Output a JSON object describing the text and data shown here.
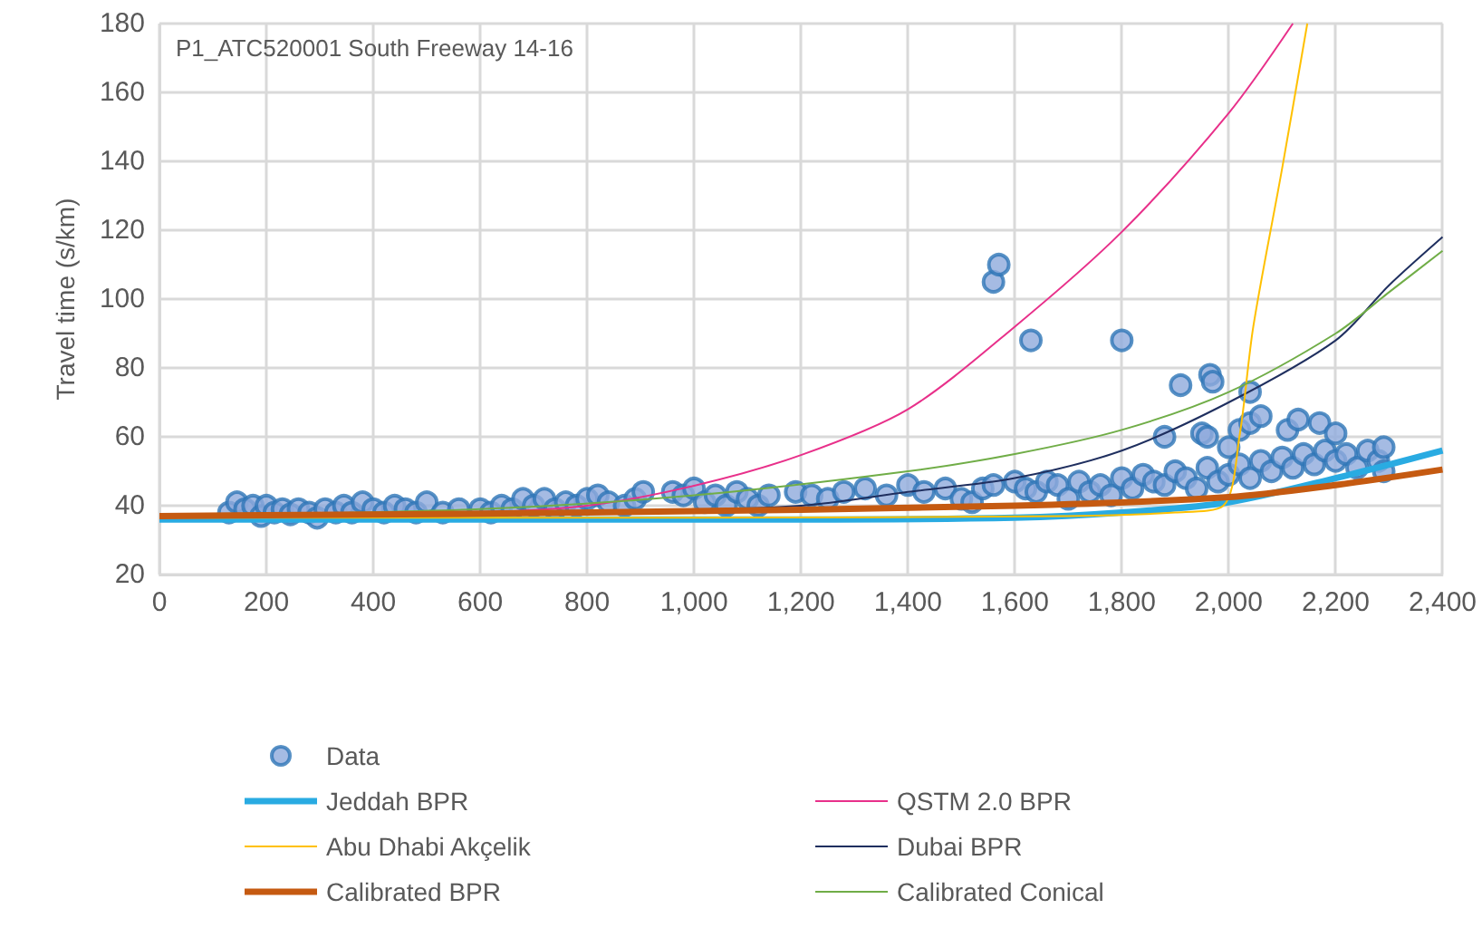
{
  "chart_data": {
    "type": "scatter",
    "title": "P1_ATC520001 South Freeway 14-16",
    "ylabel": "Travel time (s/km)",
    "xlim": [
      0,
      2400
    ],
    "xticks": [
      0,
      200,
      400,
      600,
      800,
      {
        "value": 1000,
        "label": "1,000"
      },
      {
        "value": 1200,
        "label": "1,200"
      },
      {
        "value": 1400,
        "label": "1,400"
      },
      {
        "value": 1600,
        "label": "1,600"
      },
      {
        "value": 1800,
        "label": "1,800"
      },
      {
        "value": 2000,
        "label": "2,000"
      },
      {
        "value": 2200,
        "label": "2,200"
      },
      {
        "value": 2400,
        "label": "2,400"
      }
    ],
    "ylim": [
      20,
      180
    ],
    "yticks": [
      20,
      40,
      60,
      80,
      100,
      120,
      140,
      160,
      180
    ],
    "grid": true,
    "legend": "bottom",
    "series": [
      {
        "name": "Data",
        "marker": "circle",
        "color": "#8faadc",
        "x": [
          130,
          145,
          160,
          175,
          190,
          200,
          215,
          230,
          245,
          260,
          280,
          295,
          310,
          330,
          345,
          360,
          380,
          400,
          420,
          440,
          460,
          480,
          500,
          530,
          560,
          600,
          620,
          640,
          660,
          680,
          700,
          720,
          740,
          760,
          780,
          800,
          820,
          840,
          870,
          890,
          905,
          960,
          980,
          1000,
          1020,
          1040,
          1060,
          1080,
          1100,
          1120,
          1140,
          1190,
          1220,
          1250,
          1280,
          1320,
          1360,
          1400,
          1430,
          1470,
          1500,
          1520,
          1540,
          1560,
          1560,
          1570,
          1600,
          1620,
          1630,
          1640,
          1660,
          1680,
          1700,
          1720,
          1740,
          1760,
          1780,
          1800,
          1800,
          1820,
          1840,
          1860,
          1880,
          1880,
          1900,
          1910,
          1920,
          1940,
          1950,
          1960,
          1960,
          1965,
          1970,
          1980,
          2000,
          2000,
          2020,
          2020,
          2040,
          2040,
          2040,
          2060,
          2060,
          2080,
          2100,
          2110,
          2120,
          2130,
          2140,
          2160,
          2170,
          2180,
          2200,
          2200,
          2220,
          2240,
          2260,
          2280,
          2290,
          2290
        ],
        "values": [
          38,
          41,
          39,
          40,
          37,
          40,
          38,
          39,
          37.5,
          39,
          38,
          36.5,
          39,
          38,
          40,
          38,
          41,
          39,
          38,
          40,
          39,
          38,
          41,
          38,
          39,
          39,
          38,
          40,
          39,
          42,
          40,
          42,
          39,
          41,
          40,
          42,
          43,
          41,
          40,
          42,
          44,
          44,
          43,
          45,
          41,
          43,
          40,
          44,
          42,
          40,
          43,
          44,
          43,
          42,
          44,
          45,
          43,
          46,
          44,
          45,
          42,
          41,
          45,
          105,
          46,
          110,
          47,
          45,
          88,
          44,
          47,
          46,
          42,
          47,
          44,
          46,
          43,
          88,
          48,
          45,
          49,
          47,
          46,
          60,
          50,
          75,
          48,
          45,
          61,
          60,
          51,
          78,
          76,
          47,
          57,
          49,
          62,
          52,
          73,
          64,
          48,
          66,
          53,
          50,
          54,
          62,
          51,
          65,
          55,
          52,
          64,
          56,
          61,
          53,
          55,
          51,
          56,
          53,
          57,
          50
        ]
      },
      {
        "name": "QSTM 2.0 BPR",
        "type": "line",
        "marker": "none",
        "color": "#e8308a",
        "x": [
          0,
          400,
          600,
          800,
          1000,
          1200,
          1400,
          1600,
          1800,
          2000,
          2120
        ],
        "values": [
          37,
          37.5,
          38,
          40,
          45.8,
          54.7,
          68,
          92,
          119.5,
          154,
          180
        ]
      },
      {
        "name": "Jeddah BPR",
        "type": "line",
        "marker": "none",
        "color": "#29abe2",
        "x": [
          0,
          800,
          1200,
          1600,
          1800,
          2000,
          2200,
          2400
        ],
        "values": [
          36,
          36,
          36,
          36.5,
          38,
          41,
          48,
          56
        ]
      },
      {
        "name": "Dubai BPR",
        "type": "line",
        "marker": "none",
        "color": "#1f2f5f",
        "x": [
          0,
          800,
          1200,
          1400,
          1600,
          1800,
          2000,
          2200,
          2300,
          2400
        ],
        "values": [
          37,
          38,
          40,
          44,
          48,
          56,
          70,
          88,
          104,
          118
        ]
      },
      {
        "name": "Abu Dhabi Akçelik",
        "type": "line",
        "marker": "none",
        "color": "#ffc000",
        "x": [
          0,
          1000,
          1700,
          1900,
          1990,
          2020,
          2046,
          2100,
          2147
        ],
        "values": [
          36.5,
          36.5,
          37,
          38,
          40,
          60,
          92,
          138,
          180
        ]
      },
      {
        "name": "Calibrated Conical",
        "type": "line",
        "marker": "none",
        "color": "#70ad47",
        "x": [
          0,
          600,
          1000,
          1400,
          1600,
          1800,
          2000,
          2200,
          2300,
          2400
        ],
        "values": [
          37,
          39,
          43,
          50,
          55,
          62,
          73,
          90,
          102,
          114
        ]
      },
      {
        "name": "Calibrated BPR",
        "type": "line",
        "marker": "none",
        "color": "#c55a11",
        "x": [
          0,
          800,
          1600,
          2000,
          2200,
          2400
        ],
        "values": [
          37,
          38,
          40,
          42.5,
          46,
          50.5
        ]
      }
    ]
  }
}
